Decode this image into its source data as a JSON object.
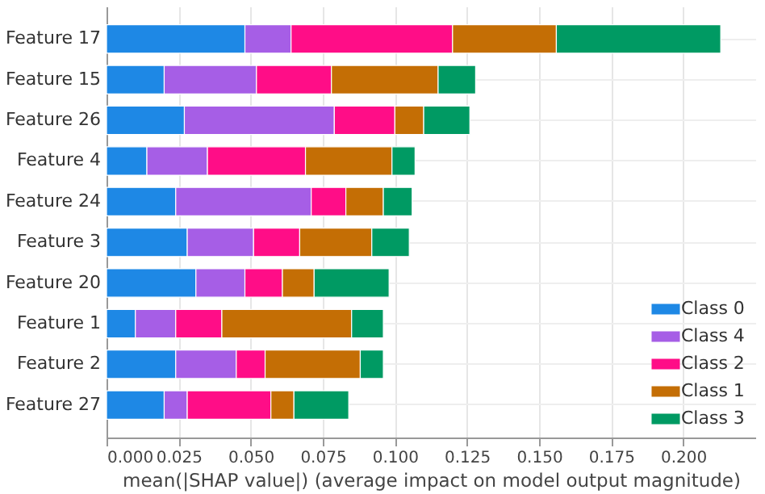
{
  "chart_data": {
    "type": "bar",
    "orientation": "horizontal",
    "stacked": true,
    "categories": [
      "Feature 17",
      "Feature 15",
      "Feature 26",
      "Feature 4",
      "Feature 24",
      "Feature 3",
      "Feature 20",
      "Feature 1",
      "Feature 2",
      "Feature 27"
    ],
    "series": [
      {
        "name": "Class 0",
        "color": "#1e88e5",
        "values": [
          0.048,
          0.02,
          0.027,
          0.014,
          0.024,
          0.028,
          0.031,
          0.01,
          0.024,
          0.02
        ]
      },
      {
        "name": "Class 4",
        "color": "#a65ee6",
        "values": [
          0.016,
          0.032,
          0.052,
          0.021,
          0.047,
          0.023,
          0.017,
          0.014,
          0.021,
          0.008
        ]
      },
      {
        "name": "Class 2",
        "color": "#ff0d87",
        "values": [
          0.056,
          0.026,
          0.021,
          0.034,
          0.012,
          0.016,
          0.013,
          0.016,
          0.01,
          0.029
        ]
      },
      {
        "name": "Class 1",
        "color": "#c46e05",
        "values": [
          0.036,
          0.037,
          0.01,
          0.03,
          0.013,
          0.025,
          0.011,
          0.045,
          0.033,
          0.008
        ]
      },
      {
        "name": "Class 3",
        "color": "#009a63",
        "values": [
          0.057,
          0.013,
          0.016,
          0.008,
          0.01,
          0.013,
          0.026,
          0.011,
          0.008,
          0.019
        ]
      }
    ],
    "xlabel": "mean(|SHAP value|) (average impact on model output magnitude)",
    "xlim": [
      0,
      0.225
    ],
    "xticks": [
      {
        "value": 0,
        "label": "0.000"
      },
      {
        "value": 0.025,
        "label": "0.025"
      },
      {
        "value": 0.05,
        "label": "0.050"
      },
      {
        "value": 0.075,
        "label": "0.075"
      },
      {
        "value": 0.1,
        "label": "0.100"
      },
      {
        "value": 0.125,
        "label": "0.125"
      },
      {
        "value": 0.15,
        "label": "0.150"
      },
      {
        "value": 0.175,
        "label": "0.175"
      },
      {
        "value": 0.2,
        "label": "0.200"
      }
    ],
    "grid": true,
    "legend": "bottom right"
  }
}
